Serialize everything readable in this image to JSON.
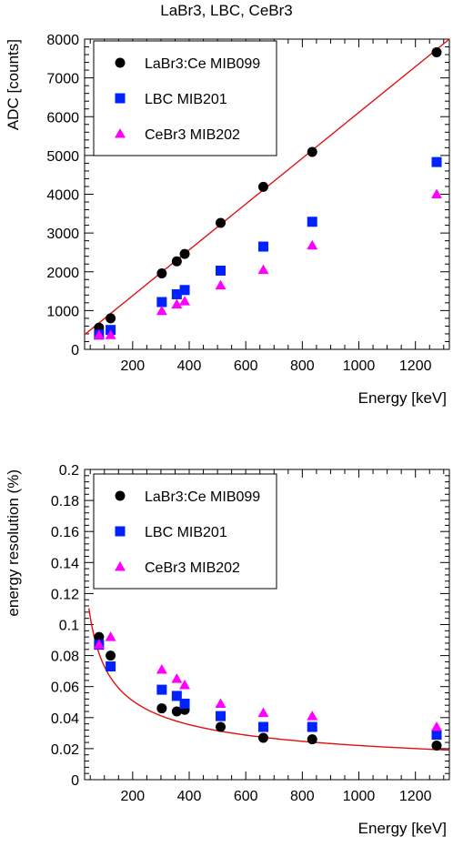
{
  "title": "LaBr3, LBC, CeBr3",
  "chart_data": [
    {
      "type": "scatter",
      "xlabel": "Energy [keV]",
      "ylabel": "ADC [counts]",
      "xlim": [
        30,
        1320
      ],
      "ylim": [
        0,
        8000
      ],
      "x_ticks": [
        200,
        400,
        600,
        800,
        1000,
        1200
      ],
      "y_ticks": [
        0,
        1000,
        2000,
        3000,
        4000,
        5000,
        6000,
        7000,
        8000
      ],
      "legend_position": "top-left",
      "fit": {
        "type": "linear",
        "points": [
          [
            30,
            380
          ],
          [
            1320,
            8000
          ]
        ],
        "color": "#e01010"
      },
      "series": [
        {
          "name": "LaBr3:Ce MIB099",
          "marker": "circle",
          "color": "#000000",
          "x": [
            81,
            122,
            303,
            356,
            384,
            511,
            662,
            835,
            1275
          ],
          "y": [
            560,
            800,
            1960,
            2270,
            2460,
            3260,
            4190,
            5090,
            7660
          ]
        },
        {
          "name": "LBC MIB201",
          "marker": "square",
          "color": "#0022ff",
          "x": [
            81,
            122,
            303,
            356,
            384,
            511,
            662,
            835,
            1275
          ],
          "y": [
            380,
            500,
            1220,
            1420,
            1530,
            2030,
            2650,
            3290,
            4830
          ]
        },
        {
          "name": "CeBr3 MIB202",
          "marker": "triangle",
          "color": "#ff00ff",
          "x": [
            81,
            122,
            303,
            356,
            384,
            511,
            662,
            835,
            1275
          ],
          "y": [
            370,
            370,
            990,
            1160,
            1240,
            1650,
            2050,
            2680,
            4000
          ]
        }
      ]
    },
    {
      "type": "scatter",
      "xlabel": "Energy [keV]",
      "ylabel": "energy resolution (%)",
      "xlim": [
        30,
        1320
      ],
      "ylim": [
        0,
        0.2
      ],
      "x_ticks": [
        200,
        400,
        600,
        800,
        1000,
        1200
      ],
      "y_ticks": [
        0,
        0.02,
        0.04,
        0.06,
        0.08,
        0.1,
        0.12,
        0.14,
        0.16,
        0.18,
        0.2
      ],
      "y_tick_labels": [
        "0",
        "0.02",
        "0.04",
        "0.06",
        "0.08",
        "0.1",
        "0.12",
        "0.14",
        "0.16",
        "0.18",
        "0.2"
      ],
      "legend_position": "top-left",
      "fit": {
        "type": "power",
        "a": 0.8,
        "b": -0.52,
        "xmin": 45,
        "xmax": 1320,
        "color": "#e01010"
      },
      "series": [
        {
          "name": "LaBr3:Ce MIB099",
          "marker": "circle",
          "color": "#000000",
          "x": [
            81,
            122,
            303,
            356,
            384,
            511,
            662,
            835,
            1275
          ],
          "y": [
            0.092,
            0.08,
            0.046,
            0.044,
            0.045,
            0.034,
            0.027,
            0.026,
            0.022
          ]
        },
        {
          "name": "LBC MIB201",
          "marker": "square",
          "color": "#0022ff",
          "x": [
            81,
            122,
            303,
            356,
            384,
            511,
            662,
            835,
            1275
          ],
          "y": [
            0.087,
            0.073,
            0.058,
            0.054,
            0.049,
            0.041,
            0.034,
            0.034,
            0.029
          ]
        },
        {
          "name": "CeBr3 MIB202",
          "marker": "triangle",
          "color": "#ff00ff",
          "x": [
            81,
            122,
            303,
            356,
            384,
            511,
            662,
            835,
            1275
          ],
          "y": [
            0.087,
            0.092,
            0.071,
            0.065,
            0.061,
            0.049,
            0.043,
            0.041,
            0.034
          ]
        }
      ]
    }
  ]
}
